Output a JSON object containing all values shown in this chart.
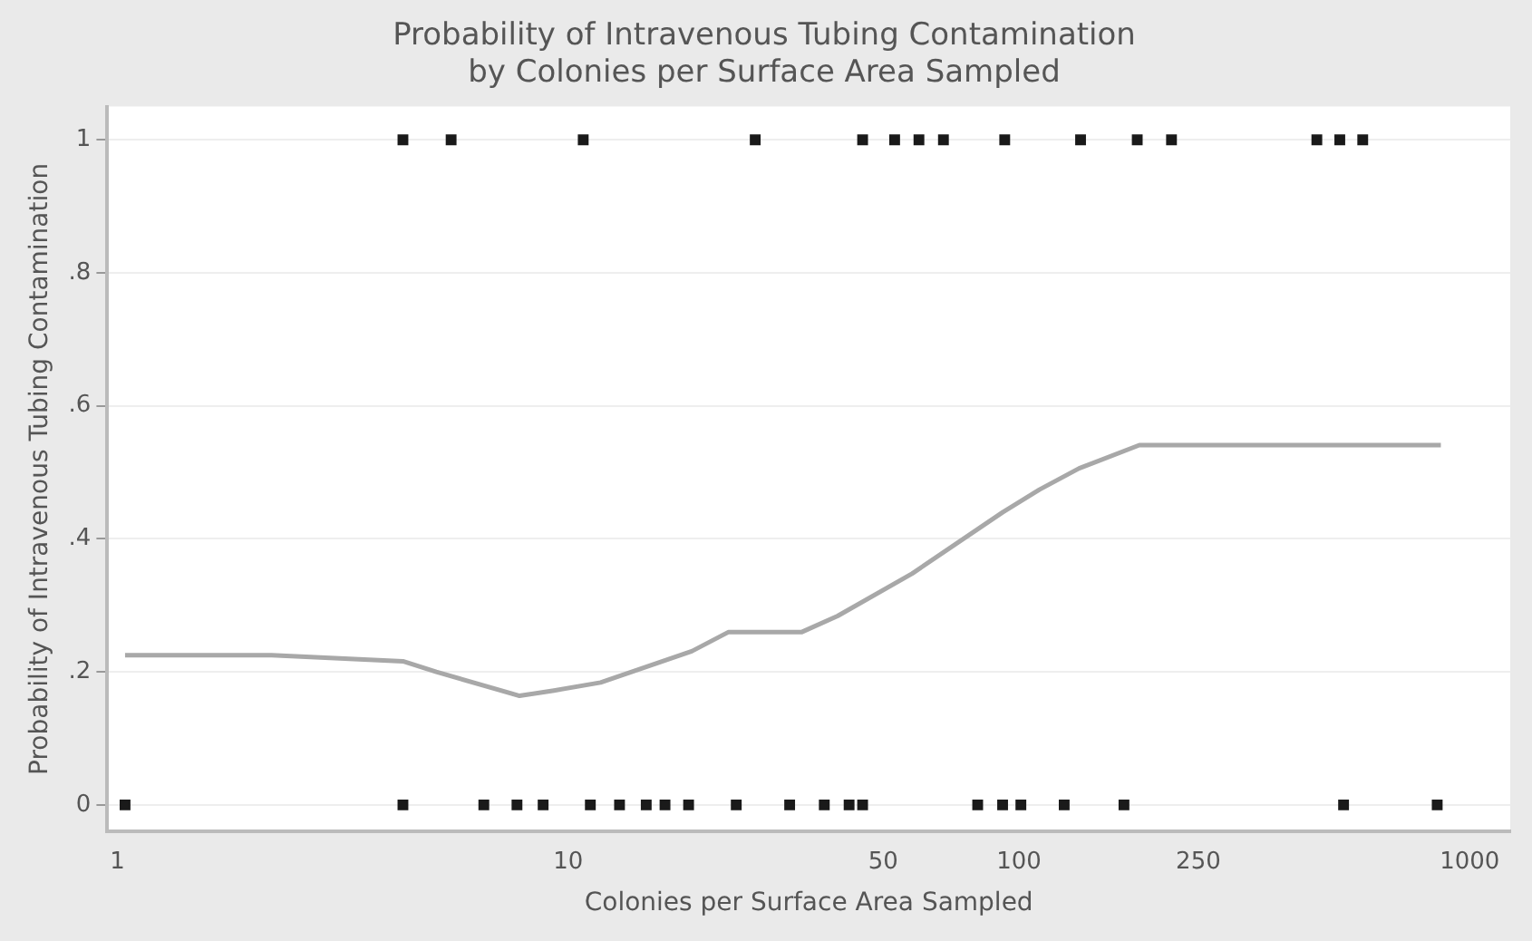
{
  "chart_data": {
    "type": "scatter",
    "title": "Probability of Intravenous Tubing Contamination\nby Colonies per Surface Area Sampled",
    "xlabel": "Colonies per Surface Area Sampled",
    "ylabel": "Probability of Intravenous Tubing Contamination",
    "log": "x",
    "xlim": [
      0.95,
      1230
    ],
    "xticks": [
      1,
      10,
      50,
      100,
      250,
      1000
    ],
    "ylim": [
      -0.04,
      1.05
    ],
    "yticks": [
      0,
      {
        "value": 0.2,
        "label": ".2"
      },
      {
        "value": 0.4,
        "label": ".4"
      },
      {
        "value": 0.6,
        "label": ".6"
      },
      {
        "value": 0.8,
        "label": ".8"
      },
      1
    ],
    "grid": "y",
    "legend": false,
    "marker": "square",
    "series": [
      {
        "color": "#1a1a1a",
        "x": [
          4.3,
          5.5,
          10.8,
          26,
          45,
          53,
          60,
          68,
          93,
          137,
          183,
          218,
          458,
          515,
          579
        ],
        "values": [
          1,
          1,
          1,
          1,
          1,
          1,
          1,
          1,
          1,
          1,
          1,
          1,
          1,
          1,
          1
        ]
      },
      {
        "color": "#1a1a1a",
        "x": [
          1.04,
          4.3,
          6.5,
          7.7,
          8.8,
          11.2,
          13,
          14.9,
          16.4,
          18.5,
          23.6,
          31,
          37,
          42,
          45,
          81,
          92,
          101,
          126,
          171,
          525,
          847
        ],
        "values": [
          0,
          0,
          0,
          0,
          0,
          0,
          0,
          0,
          0,
          0,
          0,
          0,
          0,
          0,
          0,
          0,
          0,
          0,
          0,
          0,
          0,
          0
        ]
      },
      {
        "type": "line",
        "color": "#a8a8a8",
        "marker": "none",
        "x": [
          1.04,
          2.2,
          4.3,
          5.1,
          7.8,
          9.3,
          11.8,
          18.8,
          22.7,
          33,
          39.6,
          58,
          92,
          111,
          136,
          185,
          863
        ],
        "values": [
          0.225,
          0.225,
          0.216,
          0.2,
          0.164,
          0.172,
          0.184,
          0.231,
          0.26,
          0.26,
          0.284,
          0.348,
          0.44,
          0.474,
          0.506,
          0.541,
          0.541
        ]
      }
    ]
  }
}
